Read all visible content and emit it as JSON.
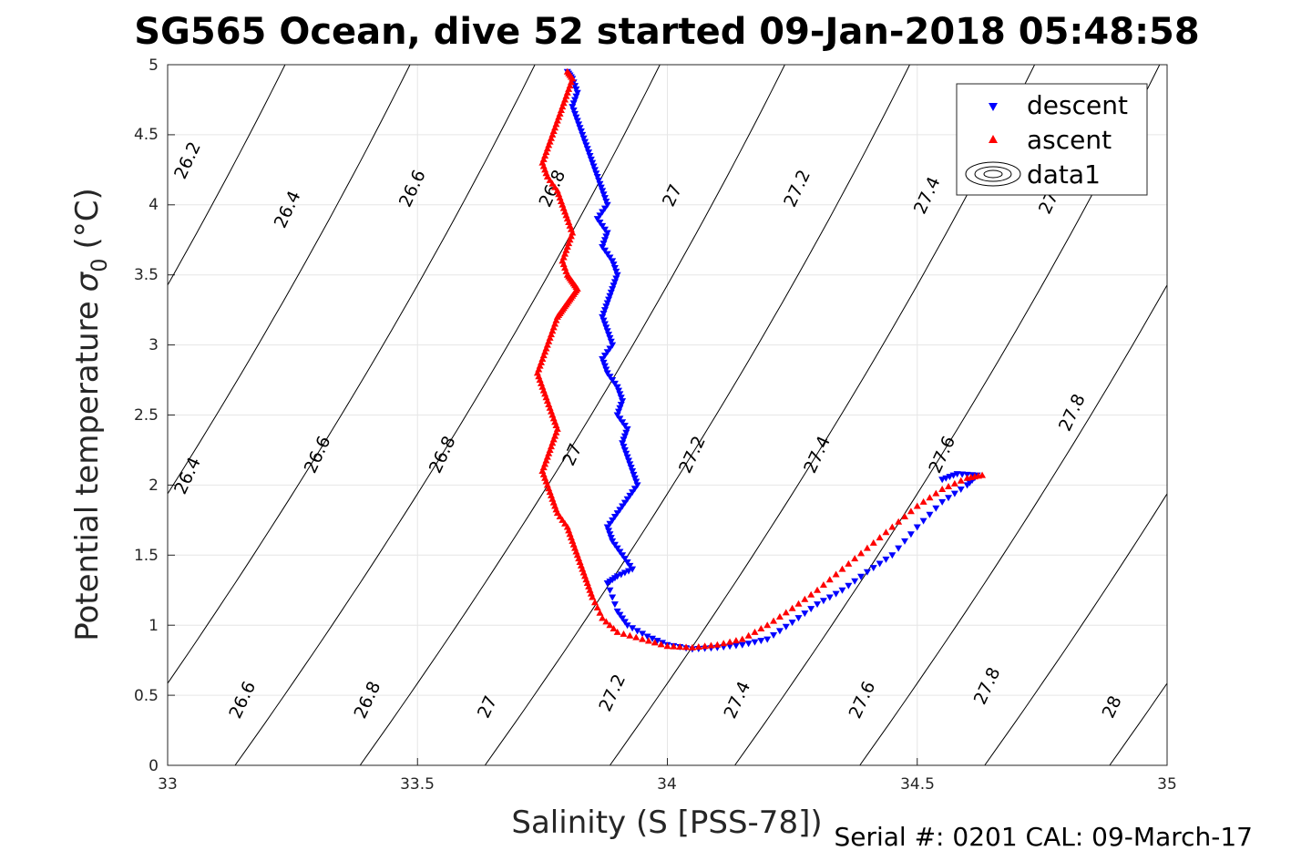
{
  "chart_data": {
    "type": "scatter",
    "title": "SG565 Ocean, dive 52 started 09-Jan-2018 05:48:58",
    "xlabel": "Salinity (S [PSS-78])",
    "ylabel": "Potential temperature",
    "ylabel_sigma": "σ",
    "ylabel_sub": "0",
    "ylabel_unit": "(°C)",
    "footer": "Serial #: 0201  CAL: 09-March-17",
    "xlim": [
      33,
      35
    ],
    "ylim": [
      0,
      5
    ],
    "xticks": [
      "33",
      "33.5",
      "34",
      "34.5",
      "35"
    ],
    "yticks": [
      "0",
      "0.5",
      "1",
      "1.5",
      "2",
      "2.5",
      "3",
      "3.5",
      "4",
      "4.5",
      "5"
    ],
    "grid": true,
    "legend_position": "top-right",
    "legend": [
      "descent",
      "ascent",
      "data1"
    ],
    "contour_levels": [
      26.2,
      26.4,
      26.6,
      26.8,
      27,
      27.2,
      27.4,
      27.6,
      27.8,
      28
    ],
    "contour_labels": [
      {
        "text": "26.2",
        "x": 33.05,
        "y": 4.3
      },
      {
        "text": "26.4",
        "x": 33.25,
        "y": 3.95
      },
      {
        "text": "26.6",
        "x": 33.5,
        "y": 4.1
      },
      {
        "text": "26.8",
        "x": 33.78,
        "y": 4.1
      },
      {
        "text": "27",
        "x": 34.02,
        "y": 4.05
      },
      {
        "text": "27.2",
        "x": 34.27,
        "y": 4.1
      },
      {
        "text": "27.4",
        "x": 34.53,
        "y": 4.05
      },
      {
        "text": "27.6",
        "x": 34.78,
        "y": 4.05
      },
      {
        "text": "26.4",
        "x": 33.05,
        "y": 2.05
      },
      {
        "text": "26.6",
        "x": 33.31,
        "y": 2.2
      },
      {
        "text": "26.8",
        "x": 33.56,
        "y": 2.2
      },
      {
        "text": "27",
        "x": 33.82,
        "y": 2.2
      },
      {
        "text": "27.2",
        "x": 34.06,
        "y": 2.2
      },
      {
        "text": "27.4",
        "x": 34.31,
        "y": 2.2
      },
      {
        "text": "27.6",
        "x": 34.56,
        "y": 2.2
      },
      {
        "text": "27.8",
        "x": 34.82,
        "y": 2.5
      },
      {
        "text": "26.6",
        "x": 33.16,
        "y": 0.45
      },
      {
        "text": "26.8",
        "x": 33.41,
        "y": 0.45
      },
      {
        "text": "27",
        "x": 33.65,
        "y": 0.4
      },
      {
        "text": "27.2",
        "x": 33.9,
        "y": 0.5
      },
      {
        "text": "27.4",
        "x": 34.15,
        "y": 0.45
      },
      {
        "text": "27.6",
        "x": 34.4,
        "y": 0.45
      },
      {
        "text": "27.8",
        "x": 34.65,
        "y": 0.55
      },
      {
        "text": "28",
        "x": 34.9,
        "y": 0.4
      }
    ],
    "series": [
      {
        "name": "descent",
        "marker": "triangle-down",
        "color": "#0000ff",
        "x": [
          33.8,
          33.81,
          33.82,
          33.81,
          33.82,
          33.83,
          33.84,
          33.85,
          33.86,
          33.87,
          33.88,
          33.86,
          33.88,
          33.87,
          33.89,
          33.9,
          33.89,
          33.88,
          33.87,
          33.88,
          33.89,
          33.87,
          33.88,
          33.9,
          33.91,
          33.9,
          33.92,
          33.91,
          33.92,
          33.93,
          33.94,
          33.92,
          33.9,
          33.88,
          33.89,
          33.91,
          33.93,
          33.9,
          33.88,
          33.9,
          33.92,
          33.96,
          34.0,
          34.05,
          34.1,
          34.15,
          34.2,
          34.25,
          34.3,
          34.35,
          34.4,
          34.45,
          34.5,
          34.55,
          34.6,
          34.62,
          34.58,
          34.55
        ],
        "y": [
          4.95,
          4.9,
          4.8,
          4.7,
          4.6,
          4.5,
          4.4,
          4.3,
          4.2,
          4.1,
          4.0,
          3.9,
          3.8,
          3.7,
          3.6,
          3.5,
          3.4,
          3.3,
          3.2,
          3.1,
          3.0,
          2.9,
          2.8,
          2.7,
          2.6,
          2.5,
          2.4,
          2.3,
          2.2,
          2.1,
          2.0,
          1.9,
          1.8,
          1.7,
          1.6,
          1.5,
          1.4,
          1.35,
          1.3,
          1.1,
          1.0,
          0.92,
          0.86,
          0.83,
          0.84,
          0.86,
          0.9,
          1.02,
          1.15,
          1.25,
          1.38,
          1.5,
          1.7,
          1.88,
          2.0,
          2.07,
          2.08,
          2.04
        ]
      },
      {
        "name": "ascent",
        "marker": "triangle-up",
        "color": "#ff0000",
        "x": [
          33.8,
          33.81,
          33.8,
          33.79,
          33.78,
          33.77,
          33.76,
          33.75,
          33.76,
          33.78,
          33.79,
          33.8,
          33.81,
          33.8,
          33.79,
          33.8,
          33.81,
          33.82,
          33.81,
          33.8,
          33.79,
          33.78,
          33.77,
          33.76,
          33.75,
          33.74,
          33.75,
          33.76,
          33.77,
          33.78,
          33.77,
          33.76,
          33.75,
          33.76,
          33.77,
          33.78,
          33.8,
          33.81,
          33.82,
          33.83,
          33.84,
          33.85,
          33.87,
          33.9,
          33.95,
          34.0,
          34.05,
          34.1,
          34.15,
          34.2,
          34.25,
          34.3,
          34.35,
          34.4,
          34.45,
          34.5,
          34.55,
          34.6,
          34.63
        ],
        "y": [
          4.95,
          4.9,
          4.8,
          4.7,
          4.6,
          4.5,
          4.4,
          4.3,
          4.2,
          4.1,
          4.0,
          3.9,
          3.8,
          3.7,
          3.6,
          3.5,
          3.45,
          3.4,
          3.35,
          3.3,
          3.25,
          3.2,
          3.1,
          3.0,
          2.9,
          2.8,
          2.7,
          2.6,
          2.5,
          2.4,
          2.3,
          2.2,
          2.1,
          2.0,
          1.9,
          1.8,
          1.7,
          1.6,
          1.5,
          1.4,
          1.3,
          1.2,
          1.05,
          0.95,
          0.9,
          0.85,
          0.84,
          0.86,
          0.9,
          1.0,
          1.12,
          1.25,
          1.4,
          1.55,
          1.7,
          1.85,
          1.97,
          2.05,
          2.07
        ]
      }
    ]
  }
}
